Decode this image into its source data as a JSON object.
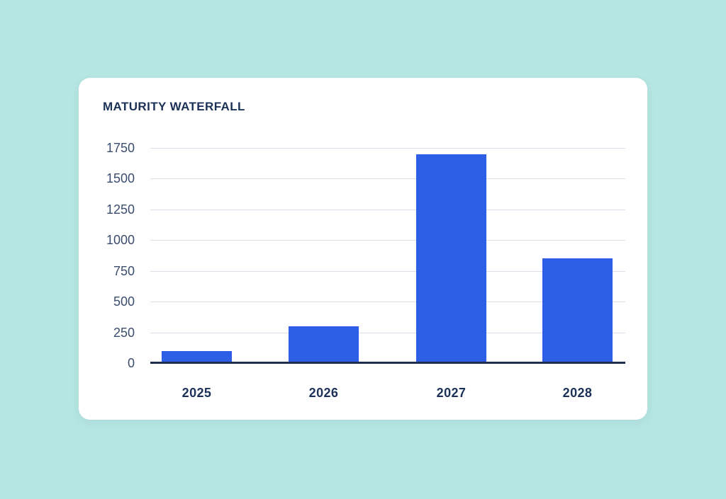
{
  "window": {
    "background_color": "#b6e6e2"
  },
  "card": {
    "background_color": "#ffffff",
    "title": "MATURITY WATERFALL"
  },
  "chart_data": {
    "type": "bar",
    "title": "MATURITY WATERFALL",
    "categories": [
      "2025",
      "2026",
      "2027",
      "2028"
    ],
    "values": [
      100,
      300,
      1700,
      850
    ],
    "xlabel": "",
    "ylabel": "",
    "ylim": [
      0,
      1750
    ],
    "yticks": [
      0,
      250,
      500,
      750,
      1000,
      1250,
      1500,
      1750
    ],
    "grid": true,
    "legend": false,
    "colors": {
      "bar": "#2c5ee6",
      "gridline": "#d9dee9",
      "axis_line": "#1f2f50",
      "ytick_label": "#3b4d6e",
      "category_label": "#1c3157",
      "title": "#1c3157",
      "page_background": "#b6e6e2",
      "card_background": "#ffffff"
    }
  }
}
